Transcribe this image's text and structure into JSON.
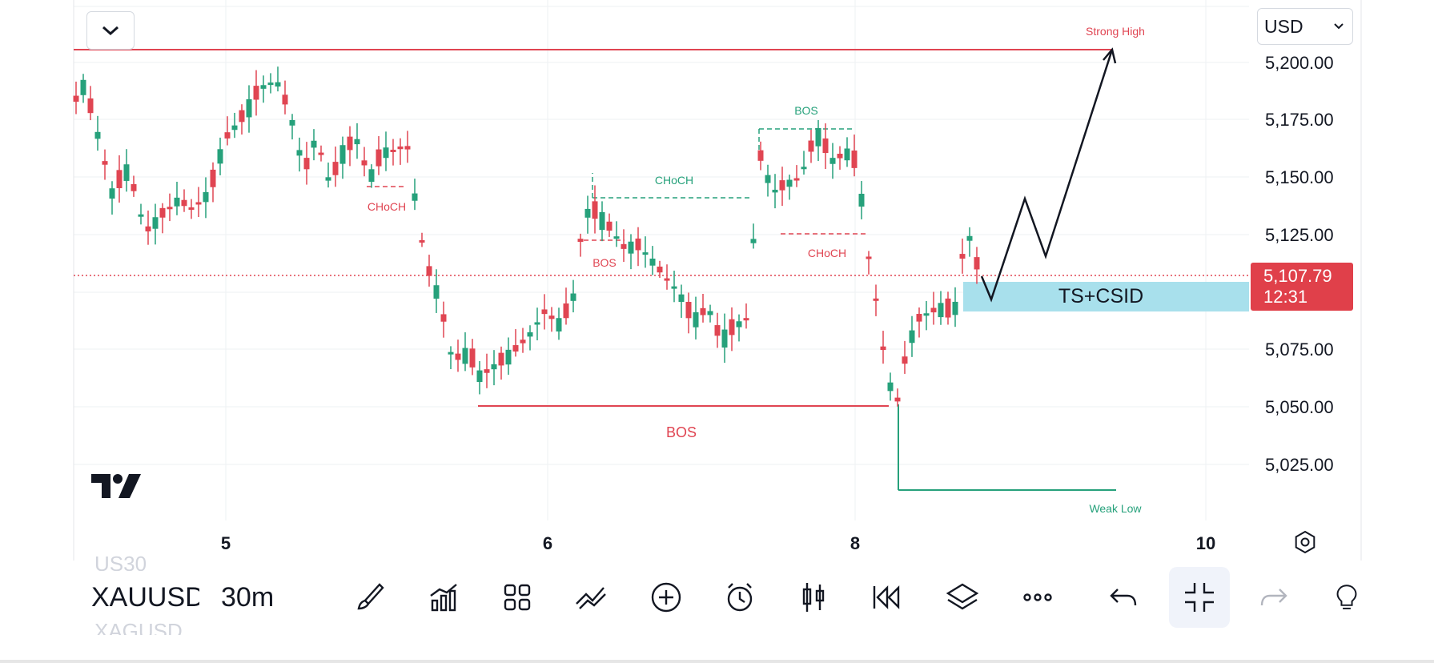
{
  "header": {
    "currency": "USD"
  },
  "price_axis": {
    "labels": [
      "5,200.00",
      "5,175.00",
      "5,150.00",
      "5,125.00",
      "5,075.00",
      "5,050.00",
      "5,025.00"
    ],
    "current_price": "5,107.79",
    "countdown": "12:31",
    "current_price_color": "#e0404a"
  },
  "time_axis": {
    "labels": [
      "5",
      "6",
      "8",
      "10"
    ]
  },
  "annotations": {
    "strong_high": "Strong High",
    "weak_low": "Weak Low",
    "bos_main": "BOS",
    "bos_left": "BOS",
    "bos_top": "BOS",
    "choch_left": "CHoCH",
    "choch_mid": "CHoCH",
    "choch_right": "CHoCH",
    "zone_label": "TS+CSID"
  },
  "colors": {
    "bull": "#26a17b",
    "bear": "#e04552",
    "zone": "#a8e0ec",
    "grid": "#eef0f3"
  },
  "toolbar": {
    "symbol": "XAUUSD",
    "symbol_prev": "US30",
    "symbol_next": "XAGUSD",
    "timeframe": "30m",
    "icons": [
      "brush-icon",
      "indicators-icon",
      "layout-grid-icon",
      "drawing-tools-icon",
      "add-icon",
      "alert-icon",
      "candles-icon",
      "replay-icon",
      "layers-icon",
      "more-icon",
      "undo-icon",
      "collapse-icon",
      "redo-icon",
      "idea-icon"
    ]
  }
}
